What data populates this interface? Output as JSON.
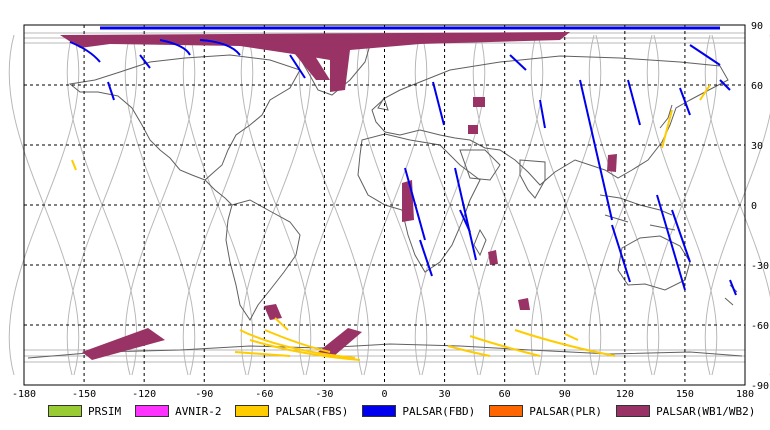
{
  "map": {
    "lon_ticks": [
      "-180",
      "-150",
      "-120",
      "-90",
      "-60",
      "-30",
      "0",
      "30",
      "60",
      "90",
      "120",
      "150",
      "180"
    ],
    "lat_ticks": [
      "90",
      "60",
      "30",
      "0",
      "-30",
      "-60",
      "-90"
    ],
    "colors": {
      "coast": "#606060",
      "orbit": "#b8b8b8",
      "grid": "#000000"
    }
  },
  "legend": [
    {
      "label": "PRSIM",
      "color": "#99cc33"
    },
    {
      "label": "AVNIR-2",
      "color": "#ff33ff"
    },
    {
      "label": "PALSAR(FBS)",
      "color": "#ffcc00"
    },
    {
      "label": "PALSAR(FBD)",
      "color": "#0000ee"
    },
    {
      "label": "PALSAR(PLR)",
      "color": "#ff6600"
    },
    {
      "label": "PALSAR(WB1/WB2)",
      "color": "#993366"
    }
  ]
}
